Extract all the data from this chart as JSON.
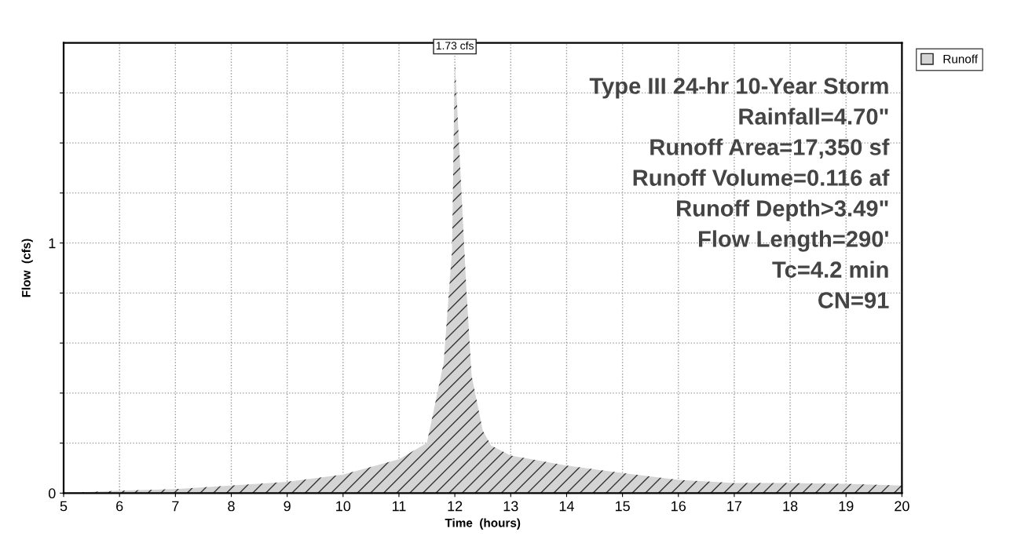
{
  "chart_data": {
    "type": "area",
    "xlabel": "Time  (hours)",
    "ylabel": "Flow  (cfs)",
    "x": [
      5,
      6,
      7,
      8,
      9,
      10,
      11,
      11.5,
      11.8,
      11.95,
      12.0,
      12.2,
      12.3,
      12.5,
      12.65,
      13,
      14,
      15,
      16,
      17,
      18,
      19,
      20
    ],
    "series": [
      {
        "name": "Runoff",
        "color": "#d4d4d4",
        "values": [
          0,
          0.01,
          0.016,
          0.03,
          0.045,
          0.074,
          0.135,
          0.2,
          0.52,
          0.97,
          1.73,
          0.84,
          0.47,
          0.25,
          0.19,
          0.15,
          0.11,
          0.08,
          0.053,
          0.04,
          0.04,
          0.037,
          0.03
        ]
      }
    ],
    "xlim": [
      5,
      20
    ],
    "xticks": [
      5,
      6,
      7,
      8,
      9,
      10,
      11,
      12,
      13,
      14,
      15,
      16,
      17,
      18,
      19,
      20
    ],
    "ylim": [
      0,
      1.8
    ],
    "yticks": [
      0,
      {
        "value": 0.2,
        "label": null
      },
      {
        "value": 0.4,
        "label": null
      },
      {
        "value": 0.6,
        "label": null
      },
      {
        "value": 0.8,
        "label": null
      },
      1,
      {
        "value": 1.2,
        "label": null
      },
      {
        "value": 1.4,
        "label": null
      },
      {
        "value": 1.6,
        "label": null
      }
    ],
    "grid": true,
    "legend": "top right",
    "annotations": [
      {
        "text": "1.73 cfs",
        "x": 12.0,
        "y": 1.73
      },
      "Type III 24-hr 10-Year Storm",
      "Rainfall=4.70\"",
      "Runoff Area=17,350 sf",
      "Runoff Volume=0.116 af",
      "Runoff Depth>3.49\"",
      "Flow Length=290'",
      "Tc=4.2 min",
      "CN=91"
    ]
  }
}
